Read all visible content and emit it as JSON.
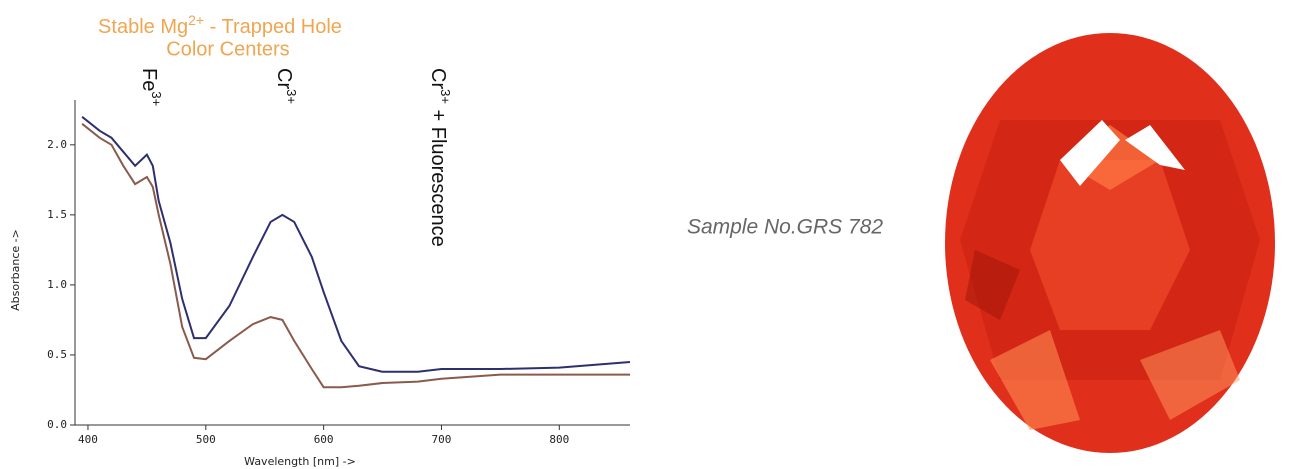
{
  "chart_data": {
    "type": "line",
    "title": {
      "line1": "Stable Mg",
      "line1_sup": "2+",
      "line1_rest": " - Trapped Hole",
      "line2": "Color Centers"
    },
    "annotations": [
      {
        "text": "Fe",
        "sup": "3+"
      },
      {
        "text": "Cr",
        "sup": "3+"
      },
      {
        "text": "Cr",
        "sup": "3+",
        "rest": " + Fluorescence"
      }
    ],
    "x_label": "Wavelength [nm] ->",
    "y_label": "Absorbance ->",
    "x": [
      395,
      410,
      420,
      430,
      440,
      450,
      455,
      460,
      470,
      480,
      490,
      500,
      520,
      540,
      555,
      565,
      575,
      590,
      600,
      615,
      630,
      650,
      680,
      700,
      750,
      800,
      860
    ],
    "series": [
      {
        "color": "#2e2f6e",
        "values": [
          2.2,
          2.1,
          2.05,
          1.95,
          1.85,
          1.93,
          1.85,
          1.6,
          1.3,
          0.9,
          0.62,
          0.62,
          0.85,
          1.2,
          1.45,
          1.5,
          1.45,
          1.2,
          0.95,
          0.6,
          0.42,
          0.38,
          0.38,
          0.4,
          0.4,
          0.41,
          0.45
        ]
      },
      {
        "color": "#8a5a4c",
        "values": [
          2.15,
          2.05,
          2.0,
          1.85,
          1.72,
          1.77,
          1.7,
          1.5,
          1.15,
          0.7,
          0.48,
          0.47,
          0.6,
          0.72,
          0.77,
          0.75,
          0.6,
          0.4,
          0.27,
          0.27,
          0.28,
          0.3,
          0.31,
          0.33,
          0.36,
          0.36,
          0.36
        ]
      }
    ],
    "xlim": [
      389,
      860
    ],
    "ylim": [
      0,
      2.32
    ],
    "xticks": [
      400,
      500,
      600,
      700,
      800
    ],
    "yticks": [
      {
        "value": 0,
        "label": "0.0"
      },
      {
        "value": 0.5,
        "label": "0.5"
      },
      {
        "value": 1,
        "label": "1.0"
      },
      {
        "value": 1.5,
        "label": "1.5"
      },
      {
        "value": 2,
        "label": "2.0"
      }
    ],
    "sample_label": "Sample No.GRS 782"
  }
}
